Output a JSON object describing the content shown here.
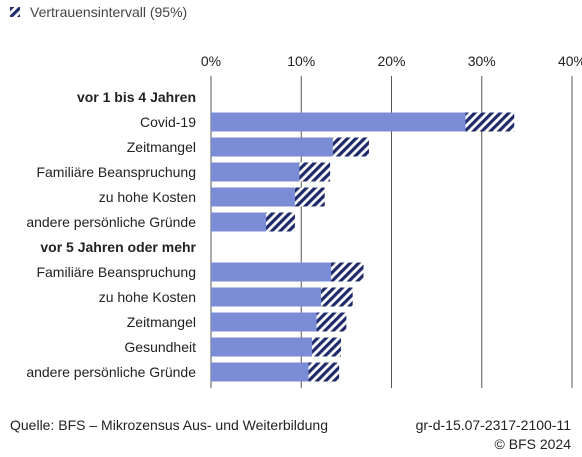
{
  "chart_data": {
    "type": "bar",
    "orientation": "horizontal",
    "legend": {
      "label": "Vertrauensintervall (95%)",
      "position": "top-left"
    },
    "x_ticks": [
      "0%",
      "10%",
      "20%",
      "30%",
      "40%"
    ],
    "xlim": [
      0,
      40
    ],
    "grid": true,
    "groups": [
      {
        "label": "vor 1 bis 4 Jahren",
        "items": [
          {
            "label": "Covid-19",
            "value": 28.2,
            "ci_low": 28.2,
            "ci_high": 33.6
          },
          {
            "label": "Zeitmangel",
            "value": 13.5,
            "ci_low": 13.5,
            "ci_high": 17.5
          },
          {
            "label": "Familiäre Beanspruchung",
            "value": 9.8,
            "ci_low": 9.8,
            "ci_high": 13.2
          },
          {
            "label": "zu hohe Kosten",
            "value": 9.3,
            "ci_low": 9.3,
            "ci_high": 12.6
          },
          {
            "label": "andere persönliche Gründe",
            "value": 6.1,
            "ci_low": 6.1,
            "ci_high": 9.3
          }
        ]
      },
      {
        "label": "vor 5 Jahren oder mehr",
        "items": [
          {
            "label": "Familiäre Beanspruchung",
            "value": 13.3,
            "ci_low": 13.3,
            "ci_high": 16.9
          },
          {
            "label": "zu hohe Kosten",
            "value": 12.2,
            "ci_low": 12.2,
            "ci_high": 15.7
          },
          {
            "label": "Zeitmangel",
            "value": 11.7,
            "ci_low": 11.7,
            "ci_high": 15.0
          },
          {
            "label": "Gesundheit",
            "value": 11.2,
            "ci_low": 11.2,
            "ci_high": 14.4
          },
          {
            "label": "andere persönliche Gründe",
            "value": 10.8,
            "ci_low": 10.8,
            "ci_high": 14.2
          }
        ]
      }
    ],
    "colors": {
      "bar": "#7b8cd6",
      "ci": "#1f2a6b",
      "grid": "#555555",
      "text": "#222222"
    }
  },
  "footer": {
    "source": "Quelle: BFS – Mikrozensus Aus- und Weiterbildung",
    "ref": "gr-d-15.07-2317-2100-11",
    "copyright": "© BFS 2024"
  }
}
